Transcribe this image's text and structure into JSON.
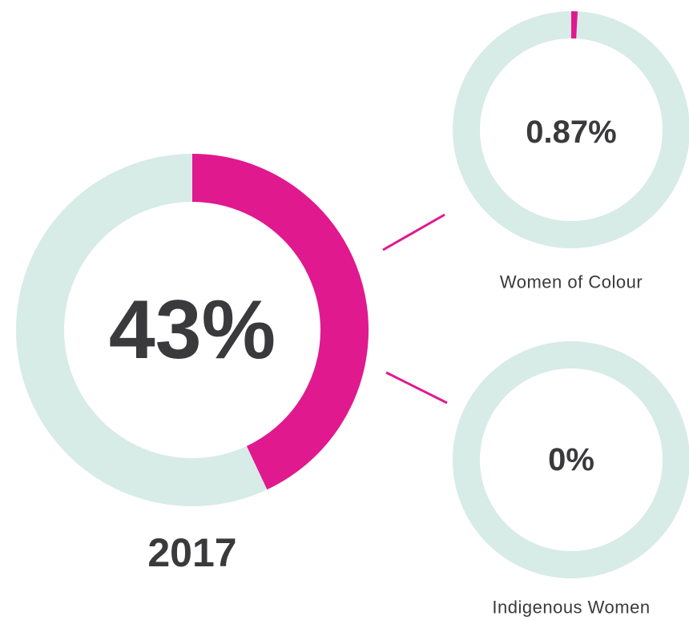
{
  "chart_data": [
    {
      "type": "donut",
      "title": "2017",
      "values": [
        43
      ],
      "value_labels": [
        "43%"
      ],
      "color": "#e0198f",
      "track_color": "#d7ebe7"
    },
    {
      "type": "donut",
      "title": "Women of Colour",
      "values": [
        0.87
      ],
      "value_labels": [
        "0.87%"
      ],
      "color": "#e0198f",
      "track_color": "#d7ebe7"
    },
    {
      "type": "donut",
      "title": "Indigenous Women",
      "values": [
        0
      ],
      "value_labels": [
        "0%"
      ],
      "color": "#e0198f",
      "track_color": "#d7ebe7"
    }
  ]
}
